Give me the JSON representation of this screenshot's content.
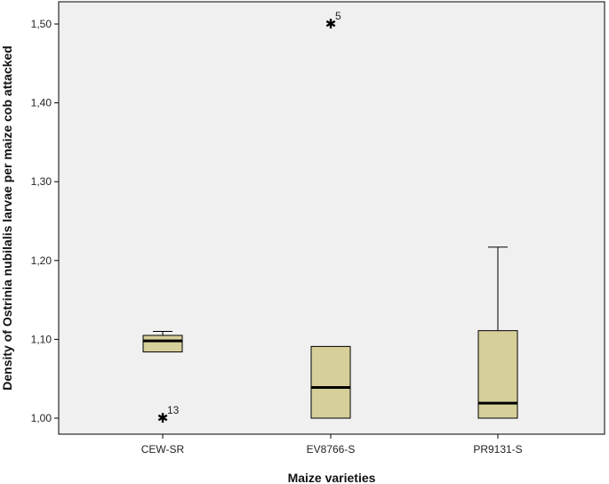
{
  "chart_data": {
    "type": "boxplot",
    "xlabel": "Maize varieties",
    "ylabel": "Density of Ostrinia nubilalis larvae per maize cob attacked",
    "ylim": [
      0.98,
      1.545
    ],
    "yticks": [
      1.0,
      1.1,
      1.2,
      1.3,
      1.4,
      1.5
    ],
    "ytick_labels": [
      "1,00",
      "1,10",
      "1,20",
      "1,30",
      "1,40",
      "1,50"
    ],
    "grid": false,
    "colors": {
      "box_fill": "#d6cf9a",
      "plot_bg": "#f0f0f0",
      "median": "#000000"
    },
    "categories": [
      "CEW-SR",
      "EV8766-S",
      "PR9131-S"
    ],
    "boxes": [
      {
        "category": "CEW-SR",
        "whisker_low": 1.084,
        "q1": 1.084,
        "median": 1.098,
        "q3": 1.105,
        "whisker_high": 1.11,
        "outliers": [
          {
            "value": 1.0,
            "label": "13"
          }
        ]
      },
      {
        "category": "EV8766-S",
        "whisker_low": 1.0,
        "q1": 1.0,
        "median": 1.039,
        "q3": 1.091,
        "whisker_high": 1.091,
        "outliers": [
          {
            "value": 1.5,
            "label": "5"
          }
        ]
      },
      {
        "category": "PR9131-S",
        "whisker_low": 1.0,
        "q1": 1.0,
        "median": 1.019,
        "q3": 1.111,
        "whisker_high": 1.217,
        "outliers": []
      }
    ]
  }
}
